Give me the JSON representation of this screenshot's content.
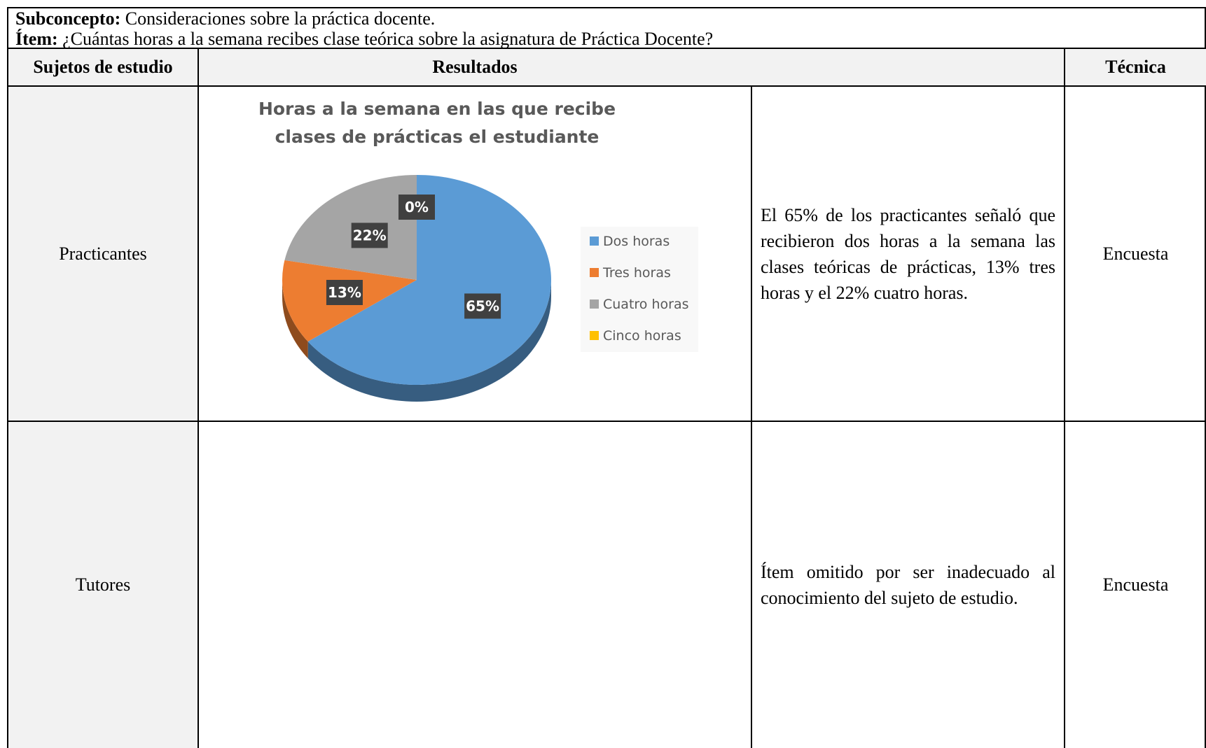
{
  "header": {
    "subconcepto": {
      "label": "Subconcepto:",
      "text": "Consideraciones sobre la práctica docente."
    },
    "item": {
      "label": "Ítem:",
      "text": "¿Cuántas horas a la semana recibes clase teórica sobre la asignatura de Práctica Docente?"
    }
  },
  "table": {
    "columns": [
      "Sujetos de estudio",
      "Resultados",
      "Técnica"
    ],
    "rows": [
      {
        "subject": "Practicantes",
        "result": "El 65% de los practicantes señaló que recibieron dos horas a la semana las clases teóricas de prácticas, 13% tres horas y el 22% cuatro horas.",
        "technique": "Encuesta"
      },
      {
        "subject": "Tutores",
        "result": "Ítem omitido por ser inadecuado al conocimiento del sujeto de estudio.",
        "technique": "Encuesta"
      }
    ]
  },
  "chart_data": {
    "type": "pie",
    "title": [
      "Horas a la semana en las que recibe",
      "clases de prácticas el estudiante"
    ],
    "categories": [
      "Dos horas",
      "Tres horas",
      "Cuatro horas",
      "Cinco horas"
    ],
    "values": [
      65,
      13,
      22,
      0
    ],
    "value_labels": [
      "65%",
      "13%",
      "22%",
      "0%"
    ],
    "colors": [
      "#5b9bd5",
      "#ed7d31",
      "#a5a5a5",
      "#ffc000"
    ]
  }
}
